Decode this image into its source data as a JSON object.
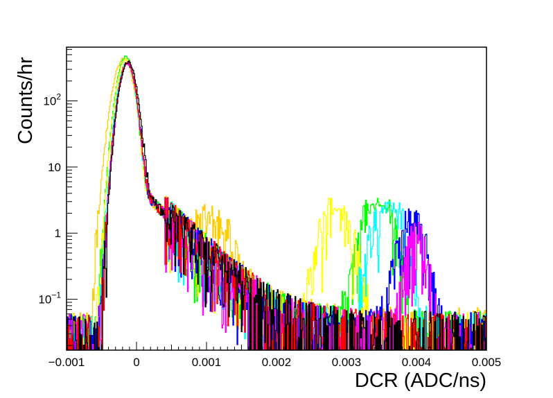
{
  "chart_data": {
    "type": "line",
    "title": "",
    "xlabel": "DCR (ADC/ns)",
    "ylabel": "Counts/hr",
    "xlim": [
      -0.001,
      0.005
    ],
    "ylim": [
      0.017,
      650
    ],
    "y_scale": "log",
    "grid": false,
    "legend": "none",
    "x_tick_labels": [
      "−0.001",
      "0",
      "0.001",
      "0.002",
      "0.003",
      "0.004",
      "0.005"
    ],
    "x_tick_values": [
      -0.001,
      0,
      0.001,
      0.002,
      0.003,
      0.004,
      0.005
    ],
    "y_ticks": [
      {
        "value": 0.1,
        "base": "10",
        "exp": "−1"
      },
      {
        "value": 1,
        "text": "1"
      },
      {
        "value": 10,
        "text": "10"
      },
      {
        "value": 100,
        "base": "10",
        "exp": "2"
      }
    ],
    "series": [
      {
        "color": "#ffcc00",
        "peak_x": -0.00018,
        "peak_y": 440,
        "sigma_left": 0.00011,
        "sigma_right": 0.0001,
        "floor": 0.04,
        "bumps": [
          {
            "x": 0.0011,
            "y": 0.95,
            "w": 0.0005,
            "flat": true
          }
        ]
      },
      {
        "color": "#00ff00",
        "peak_x": -0.00015,
        "peak_y": 470,
        "sigma_left": 9.5e-05,
        "sigma_right": 8.5e-05,
        "floor": 0.035,
        "bumps": [
          {
            "x": 0.00345,
            "y": 2.8,
            "w": 0.00017
          }
        ]
      },
      {
        "color": "#ffff00",
        "peak_x": -0.00015,
        "peak_y": 420,
        "sigma_left": 9.5e-05,
        "sigma_right": 8.5e-05,
        "floor": 0.035,
        "bumps": [
          {
            "x": 0.00285,
            "y": 2.1,
            "w": 0.00017
          }
        ]
      },
      {
        "color": "#00ffff",
        "peak_x": -0.00014,
        "peak_y": 380,
        "sigma_left": 9e-05,
        "sigma_right": 8.5e-05,
        "floor": 0.035,
        "bumps": [
          {
            "x": 0.0036,
            "y": 2.6,
            "w": 0.00017
          }
        ]
      },
      {
        "color": "#0000ff",
        "peak_x": -0.00013,
        "peak_y": 370,
        "sigma_left": 9e-05,
        "sigma_right": 8.5e-05,
        "floor": 0.035,
        "bumps": [
          {
            "x": 0.00393,
            "y": 1.3,
            "w": 0.00015
          }
        ]
      },
      {
        "color": "#ff00ff",
        "peak_x": -0.00013,
        "peak_y": 360,
        "sigma_left": 9e-05,
        "sigma_right": 8.5e-05,
        "floor": 0.035,
        "bumps": [
          {
            "x": 0.004,
            "y": 0.85,
            "w": 0.00011
          }
        ]
      },
      {
        "color": "#ff0000",
        "peak_x": -0.00013,
        "peak_y": 380,
        "sigma_left": 9e-05,
        "sigma_right": 8.5e-05,
        "floor": 0.035,
        "bumps": []
      },
      {
        "color": "#000000",
        "peak_x": -0.00012,
        "peak_y": 390,
        "sigma_left": 9e-05,
        "sigma_right": 9e-05,
        "floor": 0.035,
        "bumps": []
      }
    ]
  }
}
